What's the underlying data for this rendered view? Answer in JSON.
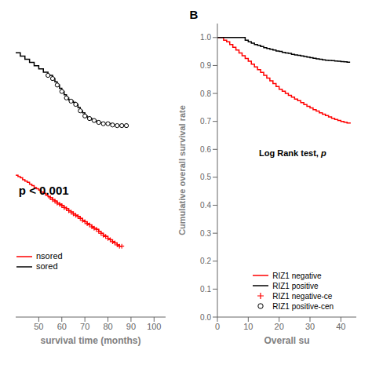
{
  "chart_data": [
    {
      "type": "step",
      "xlabel": "survival time (months)",
      "xlim": [
        40,
        105
      ],
      "xticks": [
        50,
        60,
        70,
        80,
        90,
        100
      ],
      "ylim": [
        0.55,
        1.02
      ],
      "tick_labels": "x",
      "grid": false,
      "legend": "lower left",
      "annotations": [
        "p < 0.001"
      ],
      "series": [
        {
          "name": "nsored",
          "color": "#FF0000",
          "x": [
            40,
            41,
            42,
            43,
            44,
            45,
            46,
            47,
            48,
            49,
            50,
            51,
            52,
            53,
            54,
            55,
            56,
            57,
            58,
            59,
            60,
            61,
            62,
            63,
            64,
            65,
            66,
            67,
            68,
            69,
            70,
            71,
            72,
            73,
            74,
            75,
            76,
            77,
            78,
            79,
            80,
            81,
            82,
            83,
            84,
            85,
            86
          ],
          "values": [
            0.77,
            0.768,
            0.766,
            0.763,
            0.761,
            0.759,
            0.756,
            0.754,
            0.751,
            0.749,
            0.747,
            0.744,
            0.742,
            0.739,
            0.737,
            0.735,
            0.732,
            0.73,
            0.727,
            0.725,
            0.723,
            0.72,
            0.718,
            0.715,
            0.713,
            0.71,
            0.708,
            0.706,
            0.703,
            0.7,
            0.698,
            0.695,
            0.693,
            0.69,
            0.688,
            0.686,
            0.683,
            0.68,
            0.677,
            0.675,
            0.672,
            0.67,
            0.667,
            0.665,
            0.662,
            0.66,
            0.66
          ]
        },
        {
          "name": "sored",
          "color": "#000000",
          "x": [
            40,
            42,
            44,
            46,
            48,
            50,
            52,
            54,
            56,
            57,
            58,
            59,
            60,
            61,
            62,
            63,
            64,
            65,
            66,
            67,
            68,
            69,
            70,
            71,
            72,
            73,
            74,
            75,
            76,
            77,
            78,
            80,
            82,
            84,
            86,
            88
          ],
          "values": [
            0.96,
            0.955,
            0.95,
            0.945,
            0.94,
            0.935,
            0.93,
            0.925,
            0.92,
            0.915,
            0.91,
            0.905,
            0.9,
            0.895,
            0.89,
            0.887,
            0.885,
            0.883,
            0.88,
            0.875,
            0.87,
            0.867,
            0.862,
            0.86,
            0.858,
            0.856,
            0.855,
            0.853,
            0.852,
            0.851,
            0.85,
            0.85,
            0.848,
            0.847,
            0.847,
            0.847
          ]
        },
        {
          "color": "#FF0000",
          "marker": "plus",
          "line_style": "none",
          "x": [
            55,
            56,
            57,
            58,
            59,
            60,
            61,
            62,
            63,
            64,
            65,
            66,
            67,
            68,
            69,
            70,
            71,
            72,
            73,
            74,
            75,
            76,
            77,
            78,
            79,
            80,
            81,
            82,
            83,
            84,
            85,
            86
          ],
          "values": [
            0.735,
            0.732,
            0.73,
            0.727,
            0.725,
            0.723,
            0.72,
            0.718,
            0.715,
            0.713,
            0.71,
            0.708,
            0.706,
            0.703,
            0.7,
            0.698,
            0.695,
            0.693,
            0.69,
            0.688,
            0.686,
            0.683,
            0.68,
            0.677,
            0.675,
            0.672,
            0.67,
            0.667,
            0.665,
            0.662,
            0.66,
            0.66
          ]
        },
        {
          "color": "#000000",
          "marker": "circle",
          "line_style": "none",
          "x": [
            54,
            56,
            58,
            60,
            62,
            64,
            66,
            68,
            70,
            72,
            74,
            76,
            78,
            80,
            82,
            84,
            86,
            88
          ],
          "values": [
            0.925,
            0.92,
            0.91,
            0.9,
            0.89,
            0.885,
            0.88,
            0.87,
            0.862,
            0.858,
            0.855,
            0.852,
            0.85,
            0.85,
            0.848,
            0.847,
            0.847,
            0.847
          ]
        }
      ]
    },
    {
      "type": "step",
      "title": "B",
      "xlabel": "Overall su",
      "ylabel": "Cumulative overall survival rate",
      "xlim": [
        0,
        45
      ],
      "xticks": [
        0,
        10,
        20,
        30,
        40
      ],
      "ylim": [
        0.0,
        1.05
      ],
      "yticks": [
        {
          "value": 0.0,
          "label": "0.0"
        },
        0.1,
        0.2,
        0.3,
        0.4,
        0.5,
        0.6,
        0.7,
        0.8,
        0.9,
        {
          "value": 1.0,
          "label": "1.0"
        }
      ],
      "grid": false,
      "legend": "lower left",
      "annotations": [
        "Log Rank test, ",
        "p"
      ],
      "series": [
        {
          "name": "RIZ1 negative",
          "color": "#FF0000",
          "x": [
            0,
            1,
            2,
            3,
            4,
            5,
            6,
            7,
            8,
            9,
            10,
            11,
            12,
            13,
            14,
            15,
            16,
            17,
            18,
            19,
            20,
            21,
            22,
            23,
            24,
            25,
            26,
            27,
            28,
            29,
            30,
            31,
            32,
            33,
            34,
            35,
            36,
            37,
            38,
            39,
            40,
            41,
            42,
            43
          ],
          "values": [
            1.0,
            1.0,
            0.99,
            0.985,
            0.975,
            0.965,
            0.955,
            0.945,
            0.935,
            0.925,
            0.915,
            0.905,
            0.895,
            0.885,
            0.875,
            0.865,
            0.855,
            0.845,
            0.835,
            0.825,
            0.815,
            0.808,
            0.8,
            0.793,
            0.787,
            0.78,
            0.774,
            0.767,
            0.76,
            0.754,
            0.748,
            0.742,
            0.737,
            0.731,
            0.726,
            0.721,
            0.716,
            0.711,
            0.707,
            0.703,
            0.7,
            0.697,
            0.694,
            0.692
          ]
        },
        {
          "name": "RIZ1 positive",
          "color": "#000000",
          "x": [
            0,
            1,
            2,
            3,
            4,
            5,
            6,
            7,
            8,
            9,
            10,
            11,
            12,
            13,
            14,
            15,
            16,
            17,
            18,
            19,
            20,
            21,
            22,
            23,
            24,
            25,
            26,
            27,
            28,
            29,
            30,
            31,
            32,
            33,
            34,
            35,
            36,
            37,
            38,
            39,
            40,
            41,
            42,
            43
          ],
          "values": [
            1.0,
            1.0,
            1.0,
            1.0,
            1.0,
            1.0,
            1.0,
            1.0,
            1.0,
            0.99,
            0.985,
            0.98,
            0.975,
            0.972,
            0.968,
            0.964,
            0.961,
            0.958,
            0.955,
            0.952,
            0.95,
            0.947,
            0.945,
            0.943,
            0.94,
            0.938,
            0.936,
            0.934,
            0.932,
            0.93,
            0.928,
            0.926,
            0.924,
            0.922,
            0.92,
            0.919,
            0.918,
            0.917,
            0.916,
            0.915,
            0.914,
            0.913,
            0.912,
            0.912
          ]
        },
        {
          "name": "RIZ1 negative-ce",
          "color": "#FF0000",
          "marker": "plus",
          "line_style": "none",
          "x": [],
          "values": []
        },
        {
          "name": "RIZ1 positive-cen",
          "color": "#000000",
          "marker": "circle",
          "line_style": "none",
          "x": [],
          "values": []
        }
      ]
    }
  ]
}
